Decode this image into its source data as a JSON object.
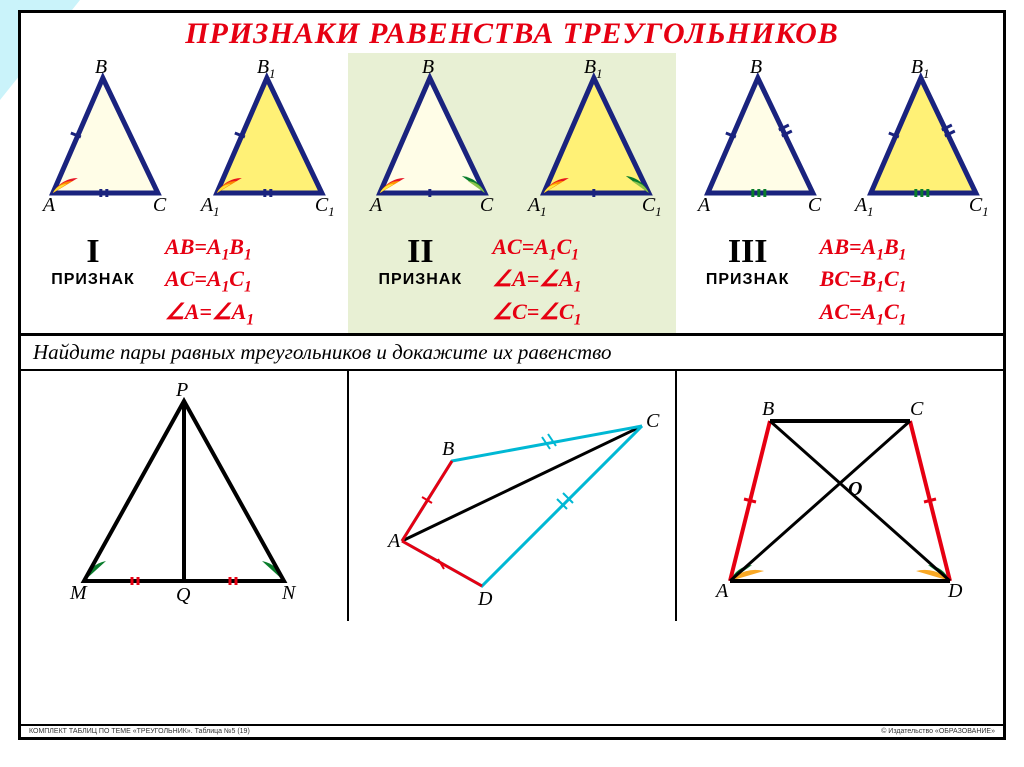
{
  "title": "ПРИЗНАКИ РАВЕНСТВА ТРЕУГОЛЬНИКОВ",
  "title_color": "#e60012",
  "title_fontsize": 30,
  "stroke_blue": "#1a237e",
  "triangles": {
    "fill_light": "#fffde7",
    "fill_yellow": "#fff176",
    "vertices": {
      "A": "A",
      "B": "B",
      "C": "C",
      "A1": "A",
      "B1": "B",
      "C1": "C",
      "sub": "1"
    }
  },
  "priznak_label": "ПРИЗНАК",
  "roman": [
    "I",
    "II",
    "III"
  ],
  "formula_color": "#e60012",
  "criteria": [
    [
      "AB=A<sub>1</sub>B<sub>1</sub>",
      "AC=A<sub>1</sub>C<sub>1</sub>",
      "∠A=∠A<sub>1</sub>"
    ],
    [
      "AC=A<sub>1</sub>C<sub>1</sub>",
      "∠A=∠A<sub>1</sub>",
      "∠C=∠C<sub>1</sub>"
    ],
    [
      "AB=A<sub>1</sub>B<sub>1</sub>",
      "BC=B<sub>1</sub>C<sub>1</sub>",
      "AC=A<sub>1</sub>C<sub>1</sub>"
    ]
  ],
  "task": "Найдите пары равных треугольников и докажите их равенство",
  "exercises": {
    "ex1": {
      "labels": {
        "P": "P",
        "M": "M",
        "Q": "Q",
        "N": "N"
      },
      "stroke": "#000",
      "tick_color": "#e60012",
      "arc_fill": "#0a7d2c"
    },
    "ex2": {
      "labels": {
        "A": "A",
        "B": "B",
        "C": "C",
        "D": "D"
      },
      "cyan": "#00b8d4",
      "red": "#e60012",
      "black": "#000"
    },
    "ex3": {
      "labels": {
        "A": "A",
        "B": "B",
        "C": "C",
        "D": "D",
        "O": "O"
      },
      "red": "#e60012",
      "black": "#000",
      "arc_green": "#0a7d2c",
      "arc_yellow": "#f9a825"
    }
  },
  "footer_left": "КОМПЛЕКТ ТАБЛИЦ ПО ТЕМЕ «ТРЕУГОЛЬНИК». Таблица №5 (19)",
  "footer_right": "© Издательство «ОБРАЗОВАНИЕ»"
}
